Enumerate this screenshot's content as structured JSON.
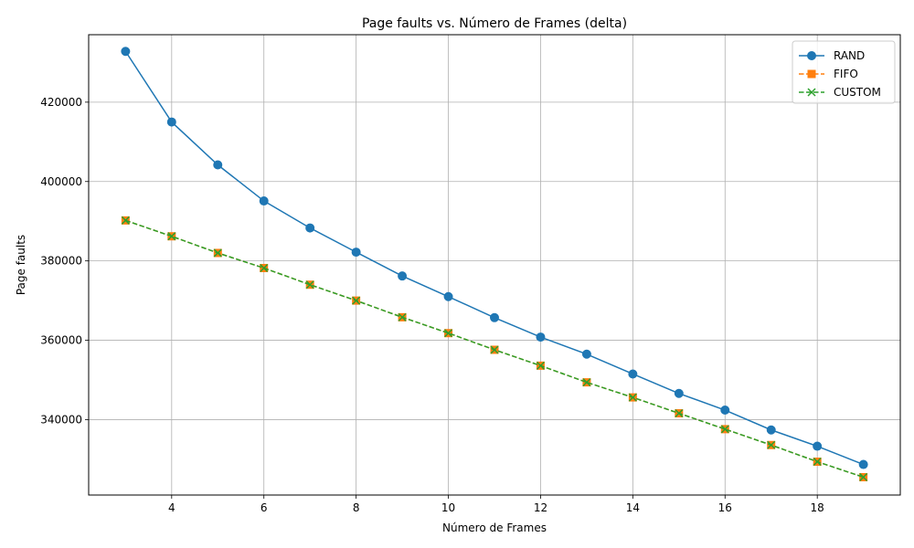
{
  "chart_data": {
    "type": "line",
    "title": "Page faults vs. Número de Frames (delta)",
    "xlabel": "Número de Frames",
    "ylabel": "Page faults",
    "xlim": [
      2.2,
      19.8
    ],
    "ylim": [
      321000,
      437000
    ],
    "xticks": [
      4,
      6,
      8,
      10,
      12,
      14,
      16,
      18
    ],
    "yticks": [
      340000,
      360000,
      380000,
      400000,
      420000
    ],
    "grid": true,
    "legend_position": "top-right",
    "x": [
      3,
      4,
      5,
      6,
      7,
      8,
      9,
      10,
      11,
      12,
      13,
      14,
      15,
      16,
      17,
      18,
      19
    ],
    "series": [
      {
        "name": "RAND",
        "color": "#1f77b4",
        "marker": "circle",
        "linestyle": "solid",
        "values": [
          432800,
          415000,
          404200,
          395100,
          388300,
          382200,
          376200,
          371000,
          365700,
          360800,
          356500,
          351500,
          346600,
          342400,
          337400,
          333300,
          328700
        ]
      },
      {
        "name": "FIFO",
        "color": "#ff7f0e",
        "marker": "square",
        "linestyle": "dashed",
        "values": [
          390200,
          386200,
          382000,
          378200,
          374000,
          370000,
          365800,
          361800,
          357600,
          353600,
          349400,
          345600,
          341600,
          337600,
          333600,
          329400,
          325500
        ]
      },
      {
        "name": "CUSTOM",
        "color": "#2ca02c",
        "marker": "x",
        "linestyle": "dashed",
        "values": [
          390200,
          386200,
          382000,
          378200,
          374000,
          370000,
          365800,
          361800,
          357600,
          353600,
          349400,
          345600,
          341600,
          337600,
          333600,
          329400,
          325500
        ]
      }
    ]
  }
}
